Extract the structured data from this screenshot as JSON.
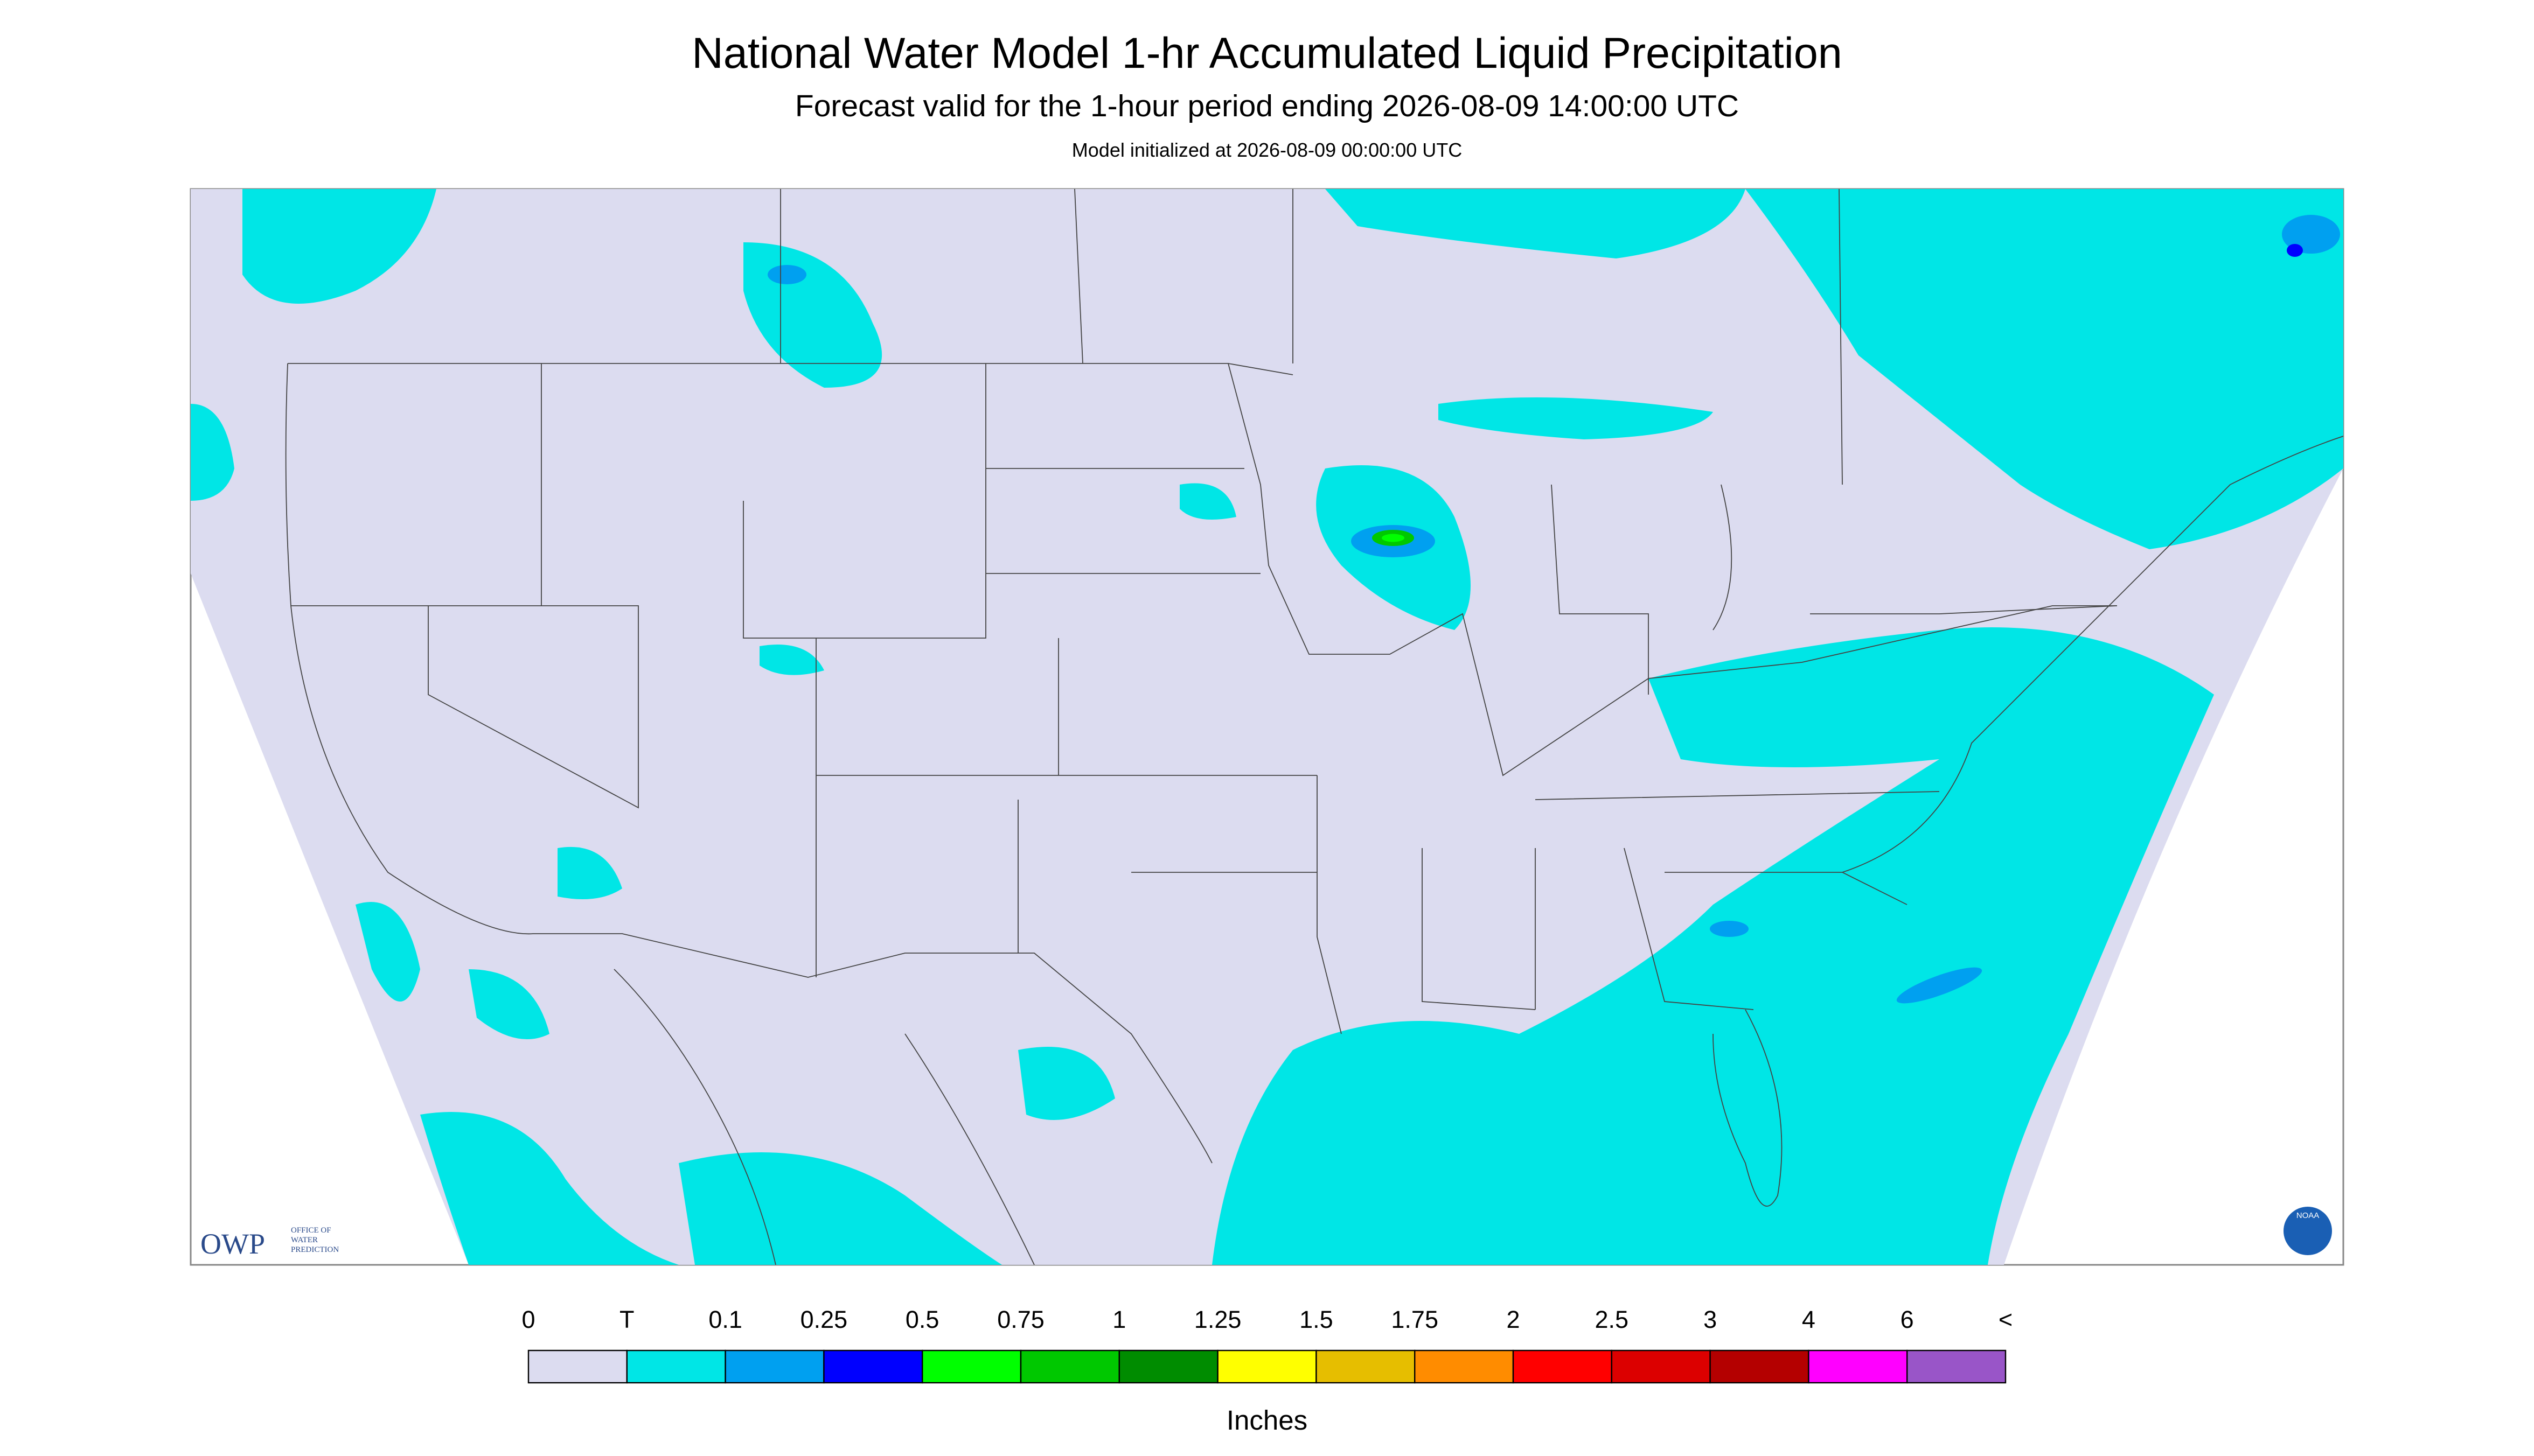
{
  "header": {
    "title": "National Water Model 1-hr Accumulated Liquid Precipitation",
    "subtitle": "Forecast valid for the 1-hour period ending 2026-08-09 14:00:00 UTC",
    "note": "Model initialized at 2026-08-09 00:00:00 UTC"
  },
  "logos": {
    "owp": "OWP",
    "owp_lines": [
      "OFFICE OF",
      "WATER",
      "PREDICTION"
    ],
    "noaa": "NOAA"
  },
  "legend": {
    "labels": [
      "0",
      "T",
      "0.1",
      "0.25",
      "0.5",
      "0.75",
      "1",
      "1.25",
      "1.5",
      "1.75",
      "2",
      "2.5",
      "3",
      "4",
      "6",
      "<"
    ],
    "colors": [
      "#dcdcf0",
      "#00e6e6",
      "#00a0f0",
      "#0000ff",
      "#00ff00",
      "#00c800",
      "#008c00",
      "#ffff00",
      "#e6be00",
      "#ff8c00",
      "#ff0000",
      "#dc0000",
      "#b40000",
      "#ff00ff",
      "#9955c8"
    ],
    "unit": "Inches"
  }
}
